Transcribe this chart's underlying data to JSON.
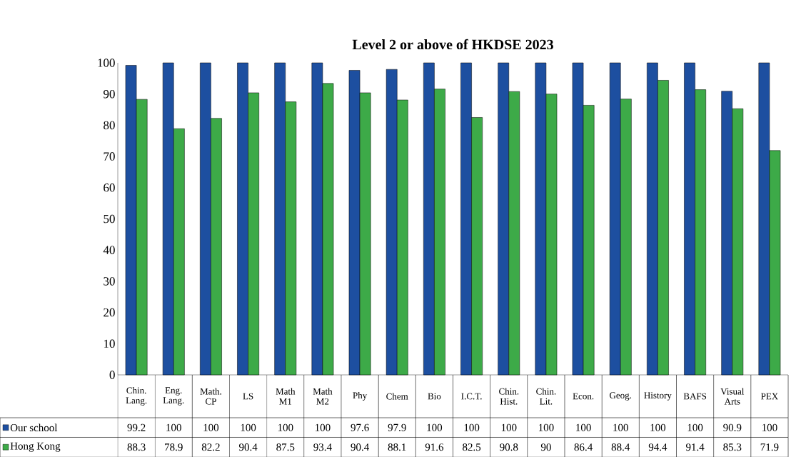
{
  "chart_data": {
    "type": "bar",
    "title": "Level 2 or above of HKDSE 2023",
    "categories": [
      "Chin. Lang.",
      "Eng. Lang.",
      "Math. CP",
      "LS",
      "Math M1",
      "Math M2",
      "Phy",
      "Chem",
      "Bio",
      "I.C.T.",
      "Chin. Hist.",
      "Chin. Lit.",
      "Econ.",
      "Geog.",
      "History",
      "BAFS",
      "Visual Arts",
      "PEX"
    ],
    "series": [
      {
        "name": "Our school",
        "color": "#1d4fa0",
        "values": [
          99.2,
          100,
          100,
          100,
          100,
          100,
          97.6,
          97.9,
          100,
          100,
          100,
          100,
          100,
          100,
          100,
          100,
          90.9,
          100
        ]
      },
      {
        "name": "Hong Kong",
        "color": "#3daa48",
        "values": [
          88.3,
          78.9,
          82.2,
          90.4,
          87.5,
          93.4,
          90.4,
          88.1,
          91.6,
          82.5,
          90.8,
          90,
          86.4,
          88.4,
          94.4,
          91.4,
          85.3,
          71.9
        ]
      }
    ],
    "ylim": [
      0,
      100
    ],
    "yticks": [
      0,
      10,
      20,
      30,
      40,
      50,
      60,
      70,
      80,
      90,
      100
    ],
    "data_labels": true,
    "legend": "bottom",
    "grid": false
  }
}
